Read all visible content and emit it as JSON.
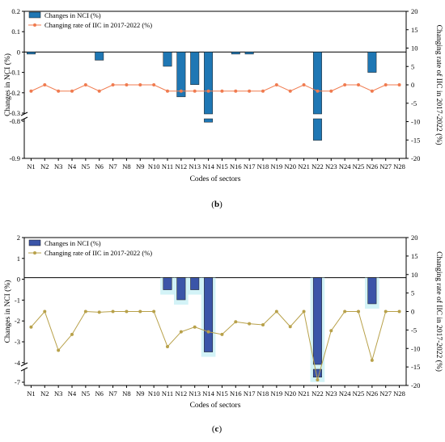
{
  "chart_data": [
    {
      "type": "bar",
      "panel_label": "b",
      "xlabel": "Codes of sectors",
      "ylabel": "Changes in NCI (%)",
      "y2label": "Changing rate of IIC in 2017-2022 (%)",
      "categories": [
        "N1",
        "N2",
        "N3",
        "N4",
        "N5",
        "N6",
        "N7",
        "N8",
        "N9",
        "N10",
        "N11",
        "N12",
        "N13",
        "N14",
        "N15",
        "N16",
        "N17",
        "N18",
        "N19",
        "N20",
        "N21",
        "N22",
        "N23",
        "N24",
        "N25",
        "N26",
        "N27",
        "N28"
      ],
      "y_ticks": [
        "0.2",
        "0.1",
        "0",
        "-0.1",
        "-0.2",
        "-0.3",
        "-0.8",
        "-0.9"
      ],
      "y2_ticks": [
        "20",
        "15",
        "10",
        "5",
        "0",
        "-5",
        "-10",
        "-15",
        "-20"
      ],
      "y_segments": [
        [
          -0.3,
          0.2
        ],
        [
          -0.9,
          -0.75
        ]
      ],
      "y2lim": [
        -20,
        20
      ],
      "bar_color": "#1f77b4",
      "line_color": "#f07b4f",
      "legend_position": "top-left",
      "series": [
        {
          "name": "Changes in NCI (%)",
          "kind": "bar",
          "axis": "left",
          "values": [
            -0.01,
            0,
            0,
            0,
            0,
            -0.04,
            0,
            0,
            0,
            0,
            -0.07,
            -0.22,
            -0.16,
            -0.76,
            0,
            -0.01,
            -0.01,
            0,
            0,
            0,
            0,
            -0.83,
            0,
            0,
            0,
            -0.1,
            0,
            0
          ]
        },
        {
          "name": "Changing rate of IIC in 2017-2022 (%)",
          "kind": "line",
          "axis": "right",
          "values": [
            -1.7,
            0,
            -1.7,
            -1.7,
            0,
            -1.7,
            0,
            0,
            0,
            0,
            -1.7,
            -1.7,
            -1.7,
            -1.7,
            -1.7,
            -1.7,
            -1.7,
            -1.7,
            0,
            -1.7,
            0,
            -1.7,
            -1.7,
            0,
            0,
            -1.7,
            0,
            0
          ]
        }
      ]
    },
    {
      "type": "bar",
      "panel_label": "c",
      "xlabel": "Codes of sectors",
      "ylabel": "Changes in NCI (%)",
      "y2label": "Changing rate of IIC in 2017-2022 (%)",
      "categories": [
        "N1",
        "N2",
        "N3",
        "N4",
        "N5",
        "N6",
        "N7",
        "N8",
        "N9",
        "N10",
        "N11",
        "N12",
        "N13",
        "N14",
        "N15",
        "N16",
        "N17",
        "N18",
        "N19",
        "N20",
        "N21",
        "N22",
        "N23",
        "N24",
        "N25",
        "N26",
        "N27",
        "N28"
      ],
      "y_ticks": [
        "2",
        "1",
        "0",
        "-1",
        "-2",
        "-3",
        "-4",
        "-7"
      ],
      "y2_ticks": [
        "20",
        "15",
        "10",
        "5",
        "0",
        "-5",
        "-10",
        "-15",
        "-20"
      ],
      "y_segments": [
        [
          -4.2,
          2
        ],
        [
          -7,
          -6.5
        ]
      ],
      "y2lim": [
        -20,
        20
      ],
      "bar_color": "#3b55a8",
      "line_color": "#b8a14a",
      "highlight_color": "#c8f0f5",
      "legend_position": "top-left",
      "series": [
        {
          "name": "Changes in NCI (%)",
          "kind": "bar",
          "axis": "left",
          "values": [
            0,
            0,
            0,
            0,
            0,
            0,
            0,
            0,
            0,
            0,
            -0.6,
            -1.1,
            -0.6,
            -3.7,
            0,
            0,
            0,
            0,
            0,
            0,
            0,
            -6.7,
            0,
            0,
            0,
            -1.3,
            0,
            0
          ]
        },
        {
          "name": "Changing rate of IIC in 2017-2022 (%)",
          "kind": "line",
          "axis": "right",
          "values": [
            -4.2,
            0,
            -10.5,
            -6.2,
            0,
            -0.2,
            0,
            0,
            0,
            0,
            -9.5,
            -5.5,
            -4.2,
            -5.5,
            -6.2,
            -2.8,
            -3.3,
            -3.6,
            0,
            -4.1,
            0,
            -18.5,
            -5.2,
            0,
            0,
            -13.2,
            0,
            0
          ]
        }
      ]
    }
  ]
}
